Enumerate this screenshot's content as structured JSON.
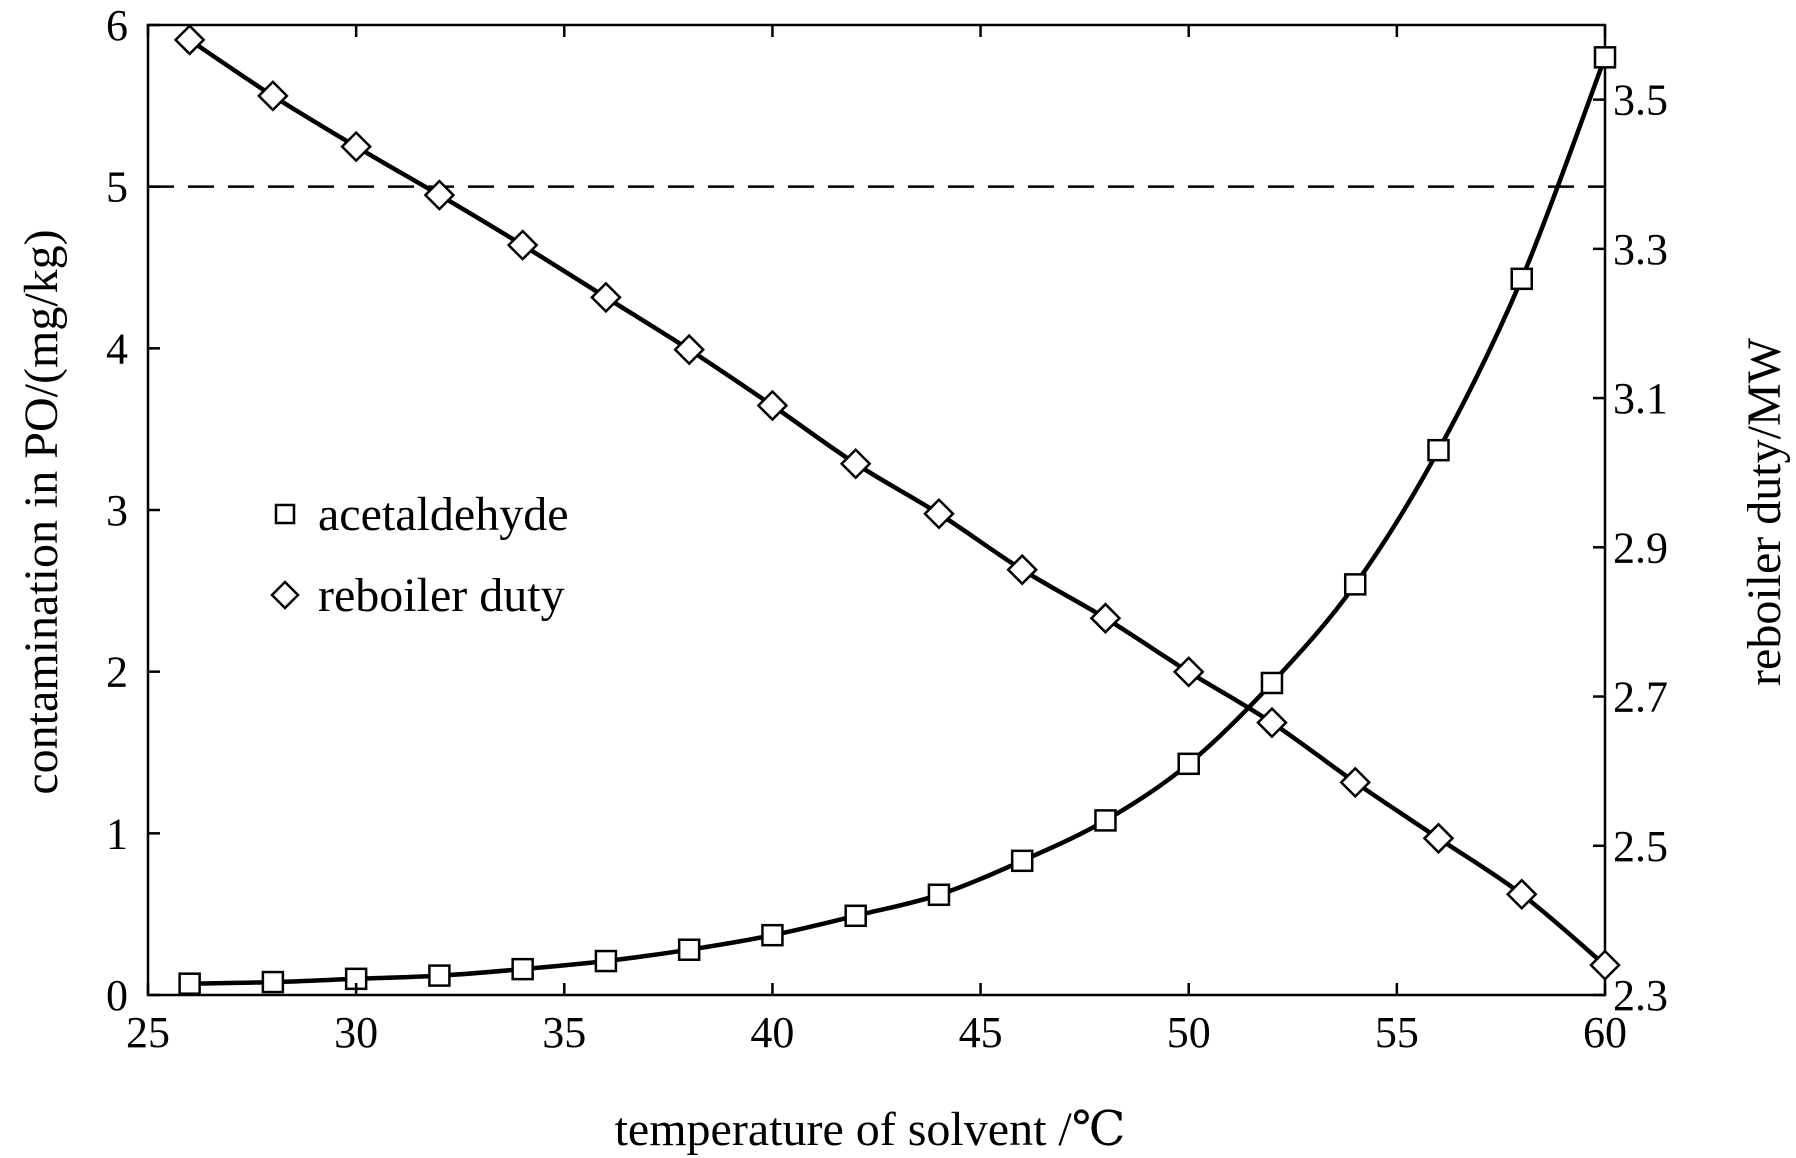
{
  "chart_data": {
    "type": "line",
    "xlabel": "temperature of solvent /℃",
    "ylabel_left": "contamination in PO/(mg/kg)",
    "ylabel_right": "reboiler duty/MW",
    "xlim": [
      25,
      60
    ],
    "ylim_left": [
      0,
      6
    ],
    "ylim_right": [
      2.3,
      3.6
    ],
    "x_ticks": [
      25,
      30,
      35,
      40,
      45,
      50,
      55,
      60
    ],
    "y_ticks_left": [
      0,
      1,
      2,
      3,
      4,
      5,
      6
    ],
    "y_ticks_right": [
      "2.3",
      "2.5",
      "2.7",
      "2.9",
      "3.1",
      "3.3",
      "3.5"
    ],
    "reference_line": {
      "axis": "left",
      "y": 5,
      "style": "dashed"
    },
    "grid": false,
    "legend_position": "middle-left",
    "series": [
      {
        "name": "acetaldehyde",
        "axis": "left",
        "marker": "square",
        "x": [
          26,
          28,
          30,
          32,
          34,
          36,
          38,
          40,
          42,
          44,
          46,
          48,
          50,
          52,
          54,
          56,
          58,
          60
        ],
        "y": [
          0.07,
          0.08,
          0.1,
          0.12,
          0.16,
          0.21,
          0.28,
          0.37,
          0.49,
          0.62,
          0.83,
          1.08,
          1.43,
          1.93,
          2.54,
          3.37,
          4.43,
          5.8
        ]
      },
      {
        "name": "reboiler duty",
        "axis": "right",
        "marker": "diamond",
        "x": [
          26,
          28,
          30,
          32,
          34,
          36,
          38,
          40,
          42,
          44,
          46,
          48,
          50,
          52,
          54,
          56,
          58,
          60
        ],
        "y": [
          3.58,
          3.505,
          3.437,
          3.372,
          3.305,
          3.235,
          3.165,
          3.09,
          3.012,
          2.945,
          2.87,
          2.805,
          2.733,
          2.665,
          2.585,
          2.51,
          2.435,
          2.34
        ]
      }
    ]
  }
}
